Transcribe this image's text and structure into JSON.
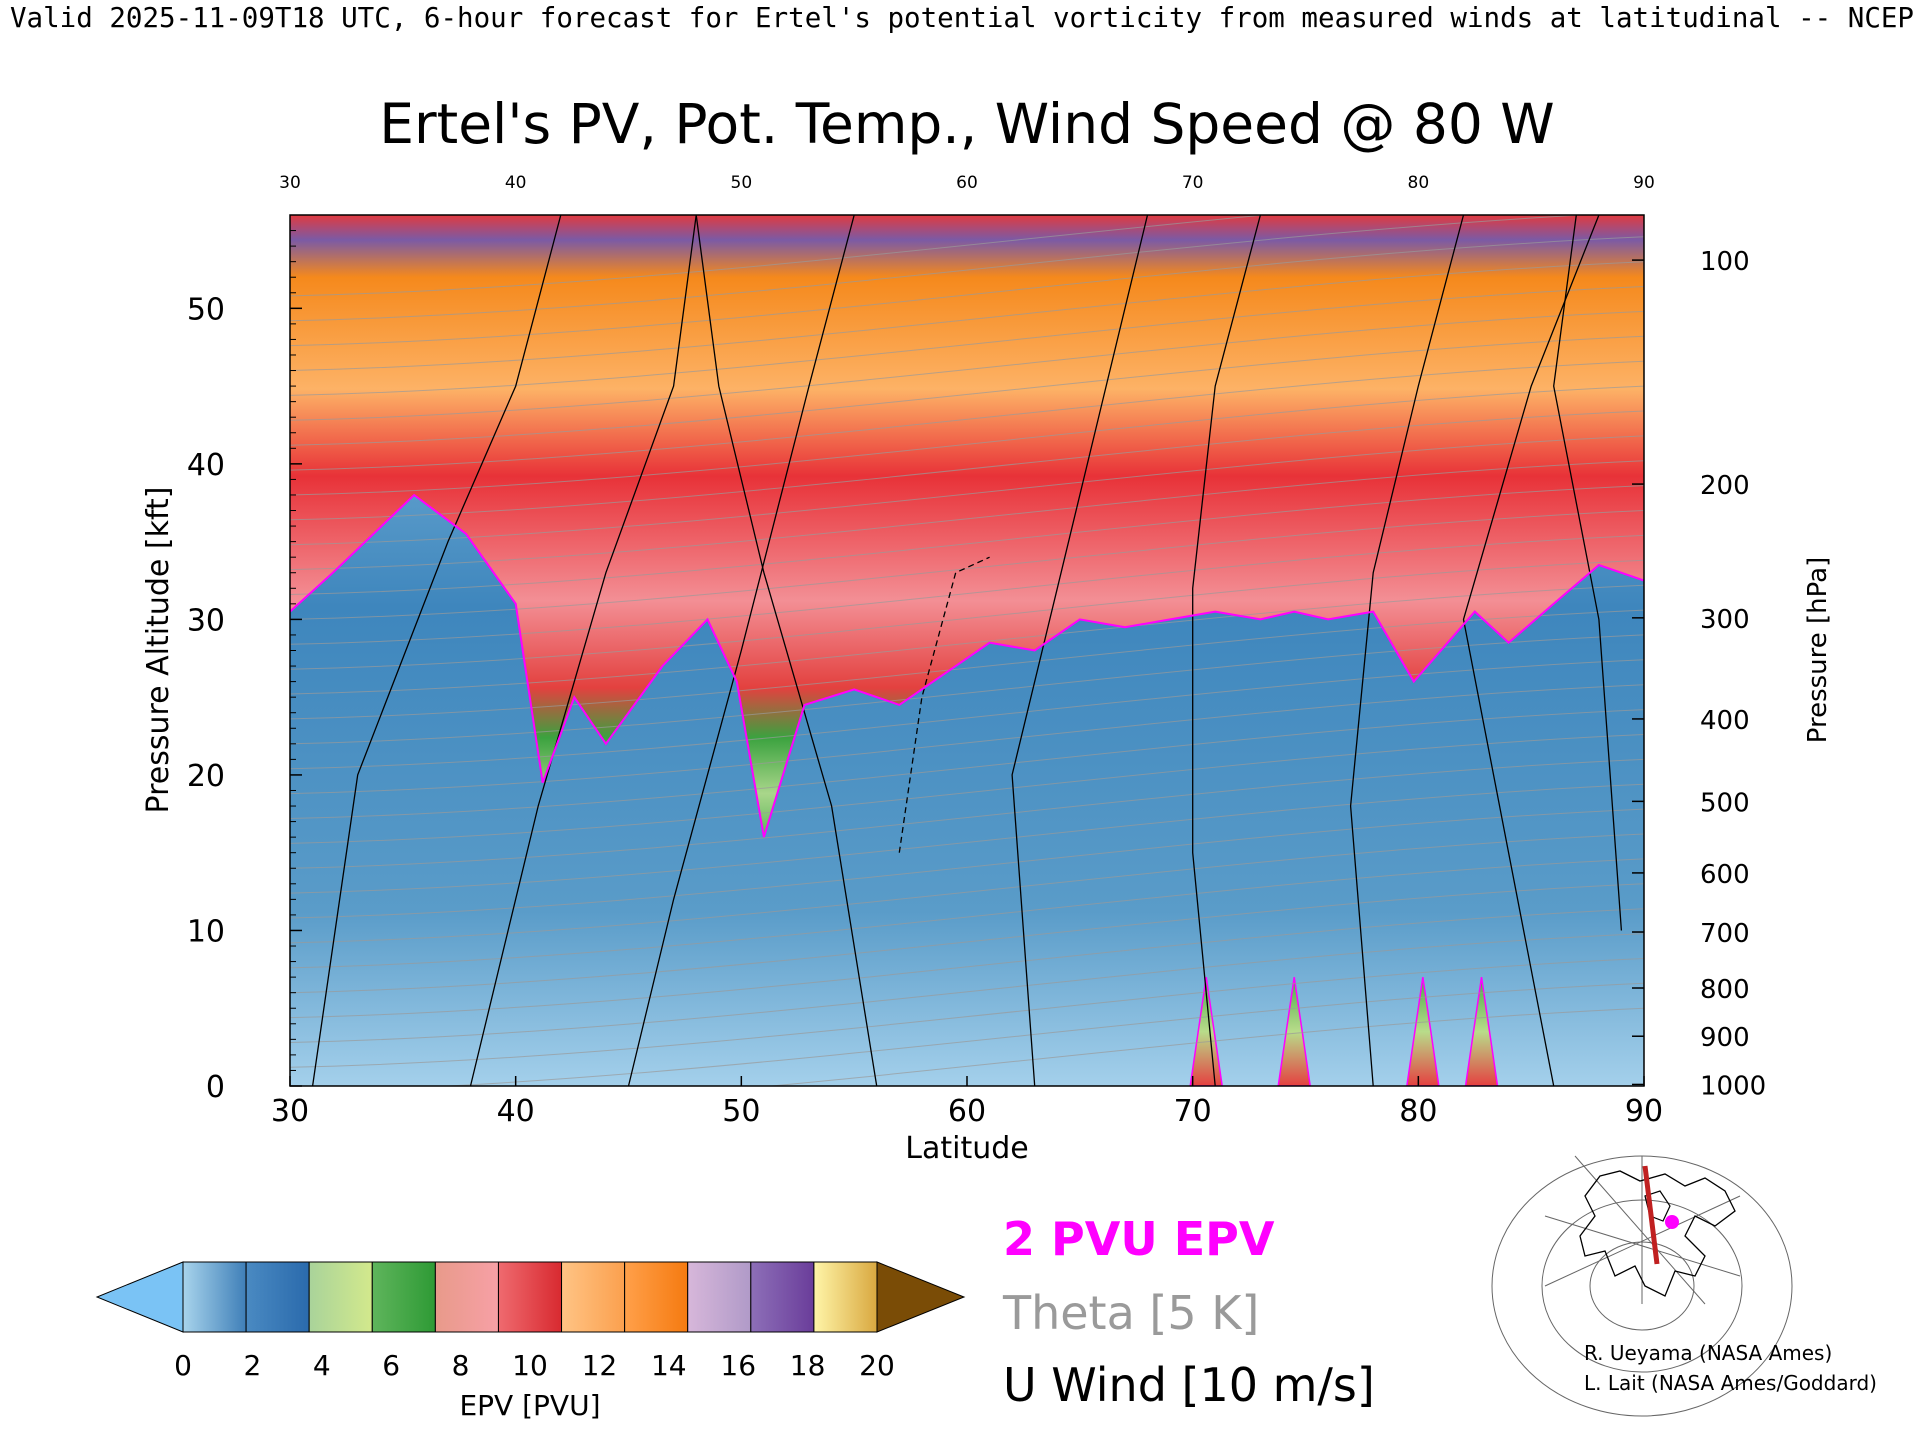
{
  "header": {
    "valid_line": "Valid 2025-11-09T18 UTC, 6-hour forecast for Ertel's potential vorticity from measured winds at latitudinal -- NCEP"
  },
  "chart_data": {
    "type": "heatmap",
    "title": "Ertel's PV, Pot. Temp., Wind Speed @ 80 W",
    "xlabel": "Latitude",
    "ylabel": "Pressure Altitude [kft]",
    "y2label": "Pressure [hPa]",
    "xlim": [
      30,
      90
    ],
    "ylim": [
      0,
      56
    ],
    "x_ticks": [
      "30",
      "40",
      "50",
      "60",
      "70",
      "80",
      "90"
    ],
    "top_x_ticks": [
      "30",
      "40",
      "50",
      "60",
      "70",
      "80",
      "90"
    ],
    "y_ticks": [
      {
        "value": 0,
        "label": "0"
      },
      {
        "value": 10,
        "label": "10"
      },
      {
        "value": 20,
        "label": "20"
      },
      {
        "value": 30,
        "label": "30"
      },
      {
        "value": 40,
        "label": "40"
      },
      {
        "value": 50,
        "label": "50"
      }
    ],
    "pressure_ticks": [
      {
        "kft": 0.1,
        "label": "1000"
      },
      {
        "kft": 3.2,
        "label": "900"
      },
      {
        "kft": 6.3,
        "label": "800"
      },
      {
        "kft": 9.9,
        "label": "700"
      },
      {
        "kft": 13.7,
        "label": "600"
      },
      {
        "kft": 18.3,
        "label": "500"
      },
      {
        "kft": 23.6,
        "label": "400"
      },
      {
        "kft": 30.1,
        "label": "300"
      },
      {
        "kft": 38.7,
        "label": "200"
      },
      {
        "kft": 53.1,
        "label": "100"
      }
    ],
    "epv_colorbar": {
      "label": "EPV [PVU]",
      "tick_labels": [
        "0",
        "2",
        "4",
        "6",
        "8",
        "10",
        "12",
        "14",
        "16",
        "18",
        "20"
      ],
      "under_color": "#7ac3f5",
      "over_color": "#7a4c06",
      "bands": [
        [
          "#a8d4ec",
          "#3f7fb8"
        ],
        [
          "#4a8ac2",
          "#2a6aac"
        ],
        [
          "#a9d39a",
          "#d3e98c"
        ],
        [
          "#5fb55c",
          "#2e9a35"
        ],
        [
          "#e89a8a",
          "#f7a0a6"
        ],
        [
          "#ef6a6f",
          "#d82a30"
        ],
        [
          "#ffc485",
          "#fba04e"
        ],
        [
          "#ffa04a",
          "#f57a10"
        ],
        [
          "#d7b7da",
          "#b09ac8"
        ],
        [
          "#8d6fb8",
          "#6a3d9a"
        ],
        [
          "#fff5a8",
          "#d9a840"
        ]
      ]
    },
    "pv_boundary": {
      "label": "2 PVU",
      "color": "#ff00ff",
      "kft": [
        30.5,
        33.0,
        38.0,
        35.5,
        31.0,
        19.5,
        25.0,
        22.0,
        27.0,
        30.0,
        26.0,
        16.0,
        24.5,
        25.5,
        24.5,
        26.5,
        28.5,
        28.0,
        30.0,
        29.5,
        30.0,
        30.5,
        30.0,
        30.5,
        30.0,
        30.5,
        26.0,
        28.0,
        30.5,
        28.5,
        31.0,
        33.5,
        32.5
      ],
      "lat": [
        30.0,
        31.9,
        35.5,
        37.8,
        40.0,
        41.2,
        42.6,
        44.0,
        46.5,
        48.5,
        49.8,
        51.0,
        52.8,
        55.0,
        57.0,
        59.0,
        61.0,
        63.0,
        65.0,
        67.0,
        69.0,
        71.0,
        73.0,
        74.5,
        76.0,
        78.0,
        79.8,
        81.0,
        82.5,
        84.0,
        86.0,
        88.0,
        90.0
      ]
    },
    "surface_pv_spikes_lat": [
      70.6,
      74.5,
      80.2,
      82.8
    ],
    "tropopause_features_lat": [
      42,
      51.5
    ],
    "theta_levels_K": [
      "270",
      "290",
      "300",
      "310",
      "320",
      "330",
      "340",
      "350",
      "360",
      "370",
      "380",
      "390",
      "400"
    ],
    "u_wind_contours_mps": [
      "-10",
      "0",
      "10",
      "20",
      "30",
      "40",
      "50"
    ]
  },
  "legend": {
    "pv_label": "2 PVU EPV",
    "theta_label": "Theta [5 K]",
    "wind_label": "U Wind [10 m/s]",
    "pv_color": "#ff00ff",
    "theta_color": "#9a9a9a",
    "wind_color": "#000000"
  },
  "inset_map": {
    "track_color": "#c02020",
    "marker_color": "#ff00ff"
  },
  "credits": {
    "line1": "R. Ueyama (NASA Ames)",
    "line2": "L. Lait (NASA Ames/Goddard)"
  }
}
